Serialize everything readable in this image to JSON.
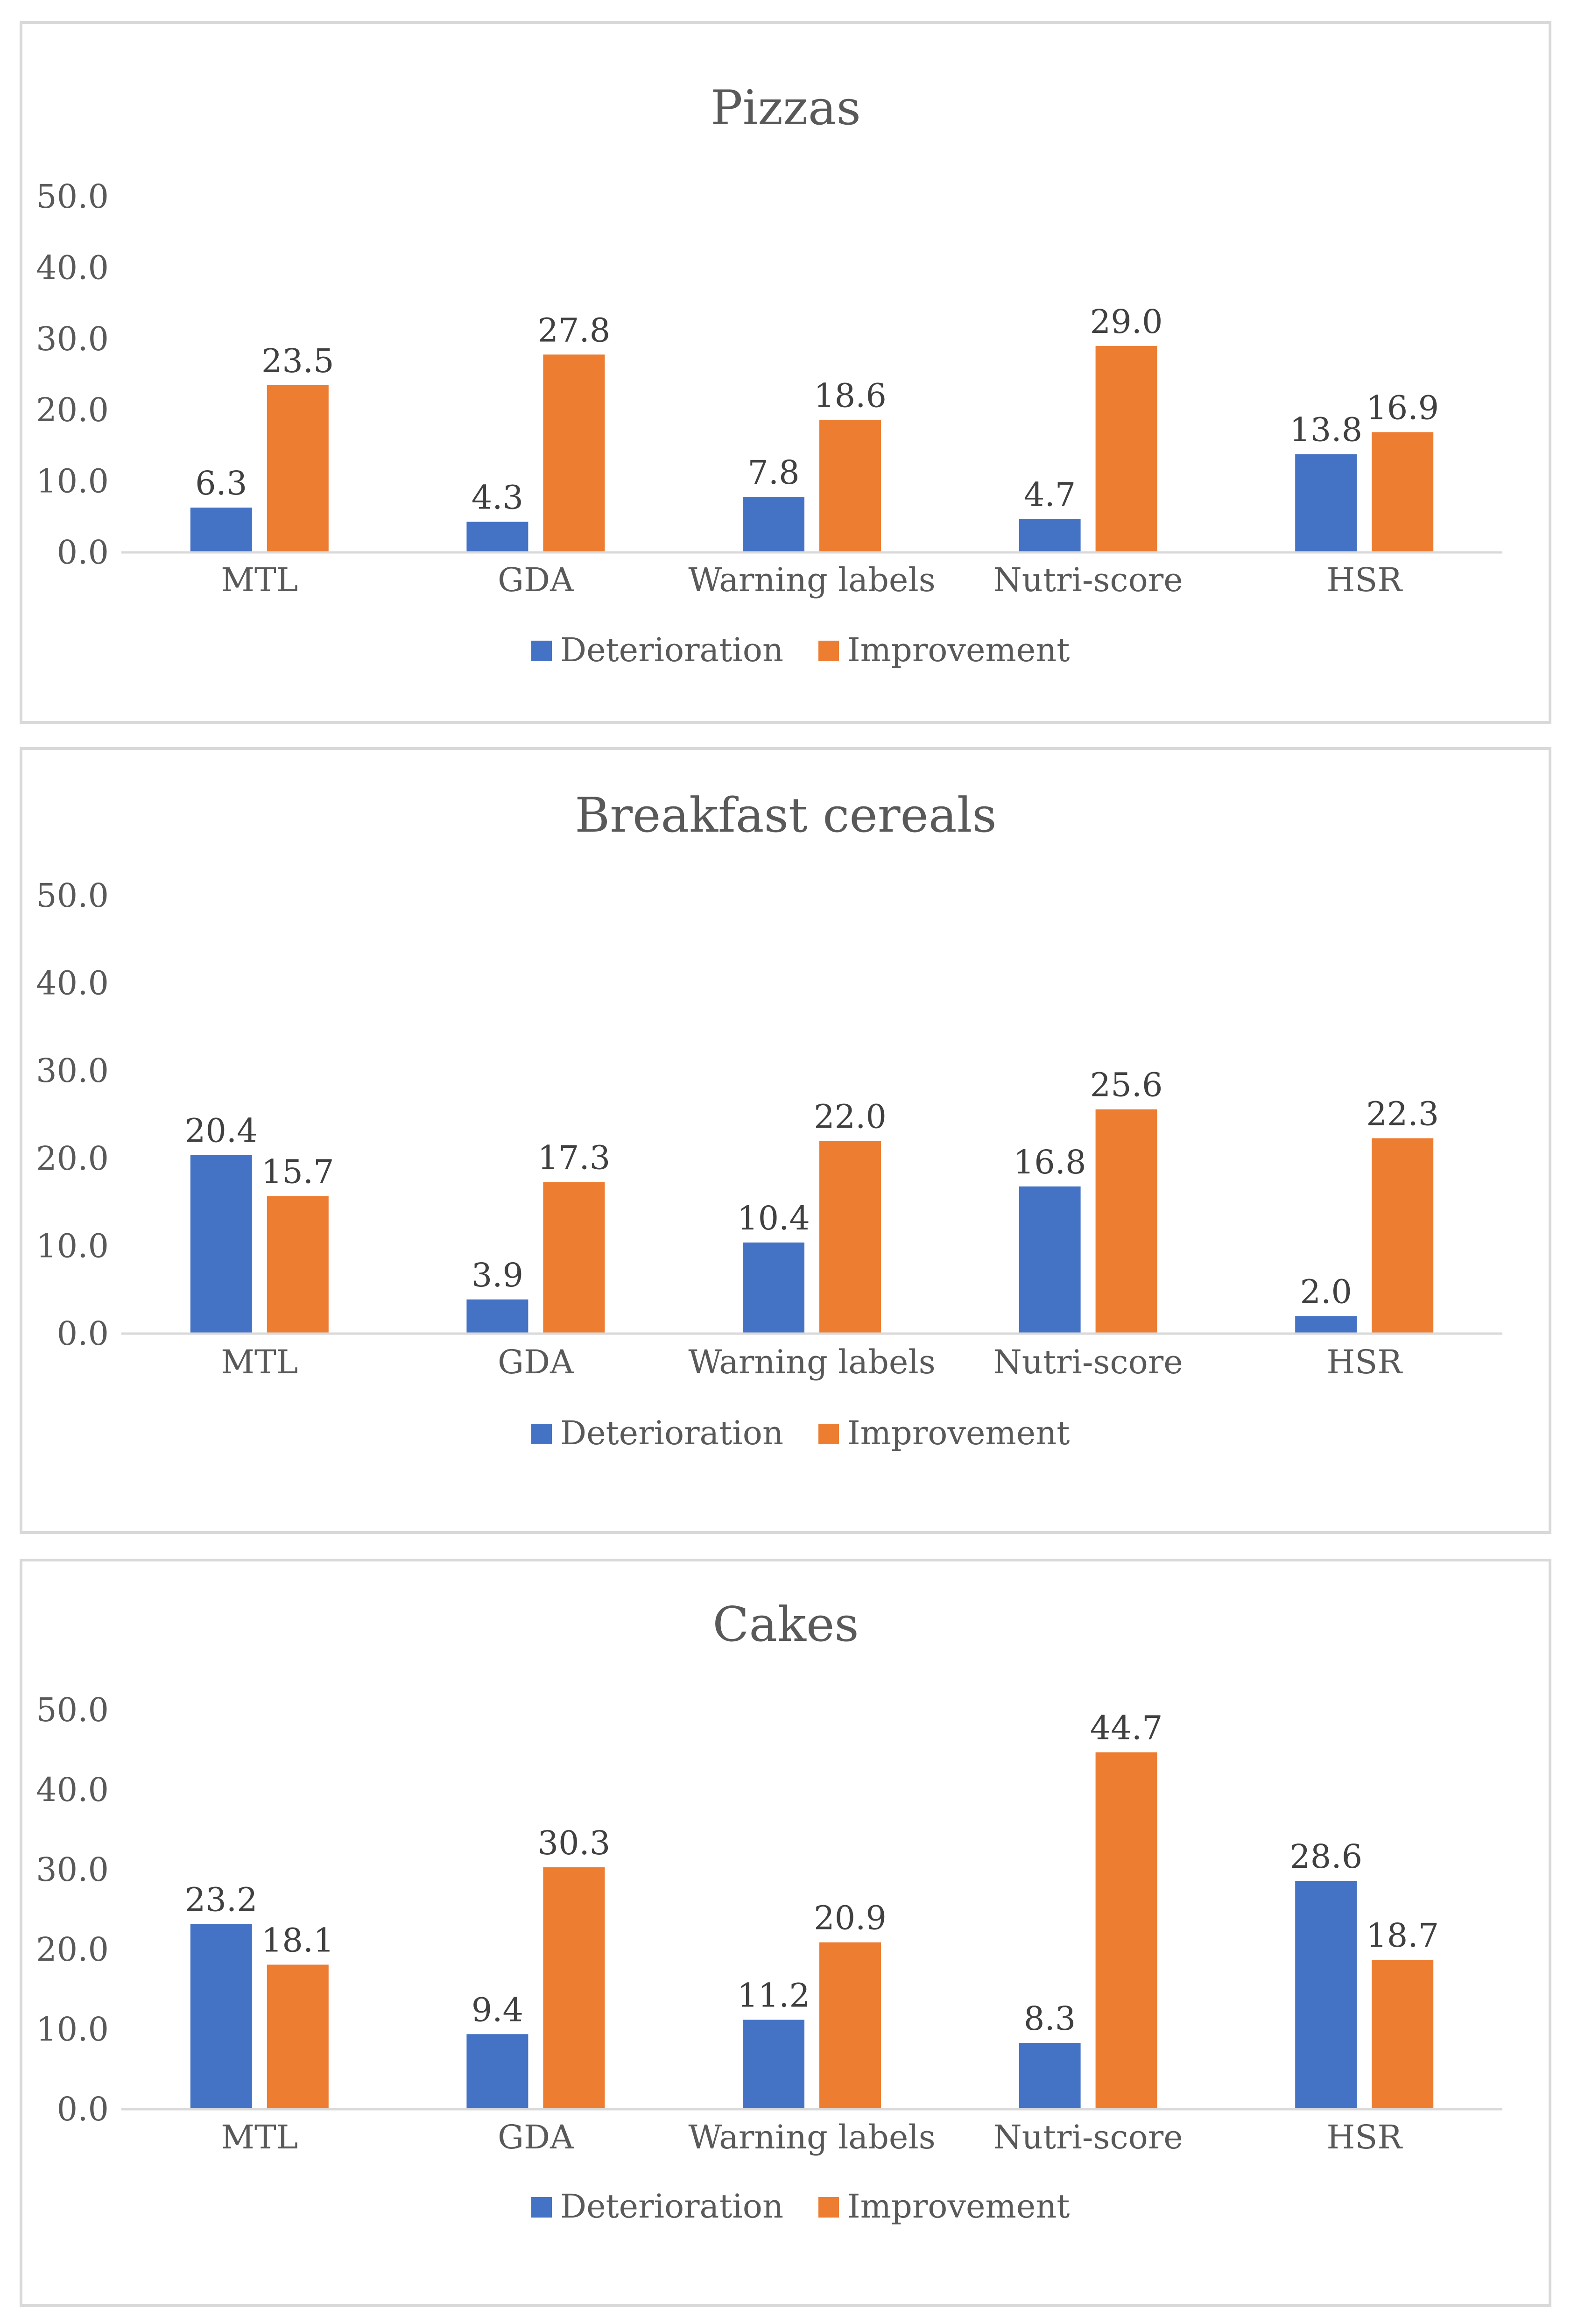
{
  "chart_data": [
    {
      "type": "bar",
      "title": "Pizzas",
      "categories": [
        "MTL",
        "GDA",
        "Warning labels",
        "Nutri-score",
        "HSR"
      ],
      "series": [
        {
          "name": "Deterioration",
          "color": "#4472c4",
          "values": [
            6.3,
            4.3,
            7.8,
            4.7,
            13.8
          ]
        },
        {
          "name": "Improvement",
          "color": "#ed7d31",
          "values": [
            23.5,
            27.8,
            18.6,
            29.0,
            16.9
          ]
        }
      ],
      "yticks": [
        "0.0",
        "10.0",
        "20.0",
        "30.0",
        "40.0",
        "50.0"
      ],
      "ylim": [
        0,
        50
      ],
      "legend_position": "bottom",
      "grid": false
    },
    {
      "type": "bar",
      "title": "Breakfast cereals",
      "categories": [
        "MTL",
        "GDA",
        "Warning labels",
        "Nutri-score",
        "HSR"
      ],
      "series": [
        {
          "name": "Deterioration",
          "color": "#4472c4",
          "values": [
            20.4,
            3.9,
            10.4,
            16.8,
            2.0
          ]
        },
        {
          "name": "Improvement",
          "color": "#ed7d31",
          "values": [
            15.7,
            17.3,
            22.0,
            25.6,
            22.3
          ]
        }
      ],
      "yticks": [
        "0.0",
        "10.0",
        "20.0",
        "30.0",
        "40.0",
        "50.0"
      ],
      "ylim": [
        0,
        50
      ],
      "legend_position": "bottom",
      "grid": false
    },
    {
      "type": "bar",
      "title": "Cakes",
      "categories": [
        "MTL",
        "GDA",
        "Warning labels",
        "Nutri-score",
        "HSR"
      ],
      "series": [
        {
          "name": "Deterioration",
          "color": "#4472c4",
          "values": [
            23.2,
            9.4,
            11.2,
            8.3,
            28.6
          ]
        },
        {
          "name": "Improvement",
          "color": "#ed7d31",
          "values": [
            18.1,
            30.3,
            20.9,
            44.7,
            18.7
          ]
        }
      ],
      "yticks": [
        "0.0",
        "10.0",
        "20.0",
        "30.0",
        "40.0",
        "50.0"
      ],
      "ylim": [
        0,
        50
      ],
      "legend_position": "bottom",
      "grid": false
    }
  ]
}
